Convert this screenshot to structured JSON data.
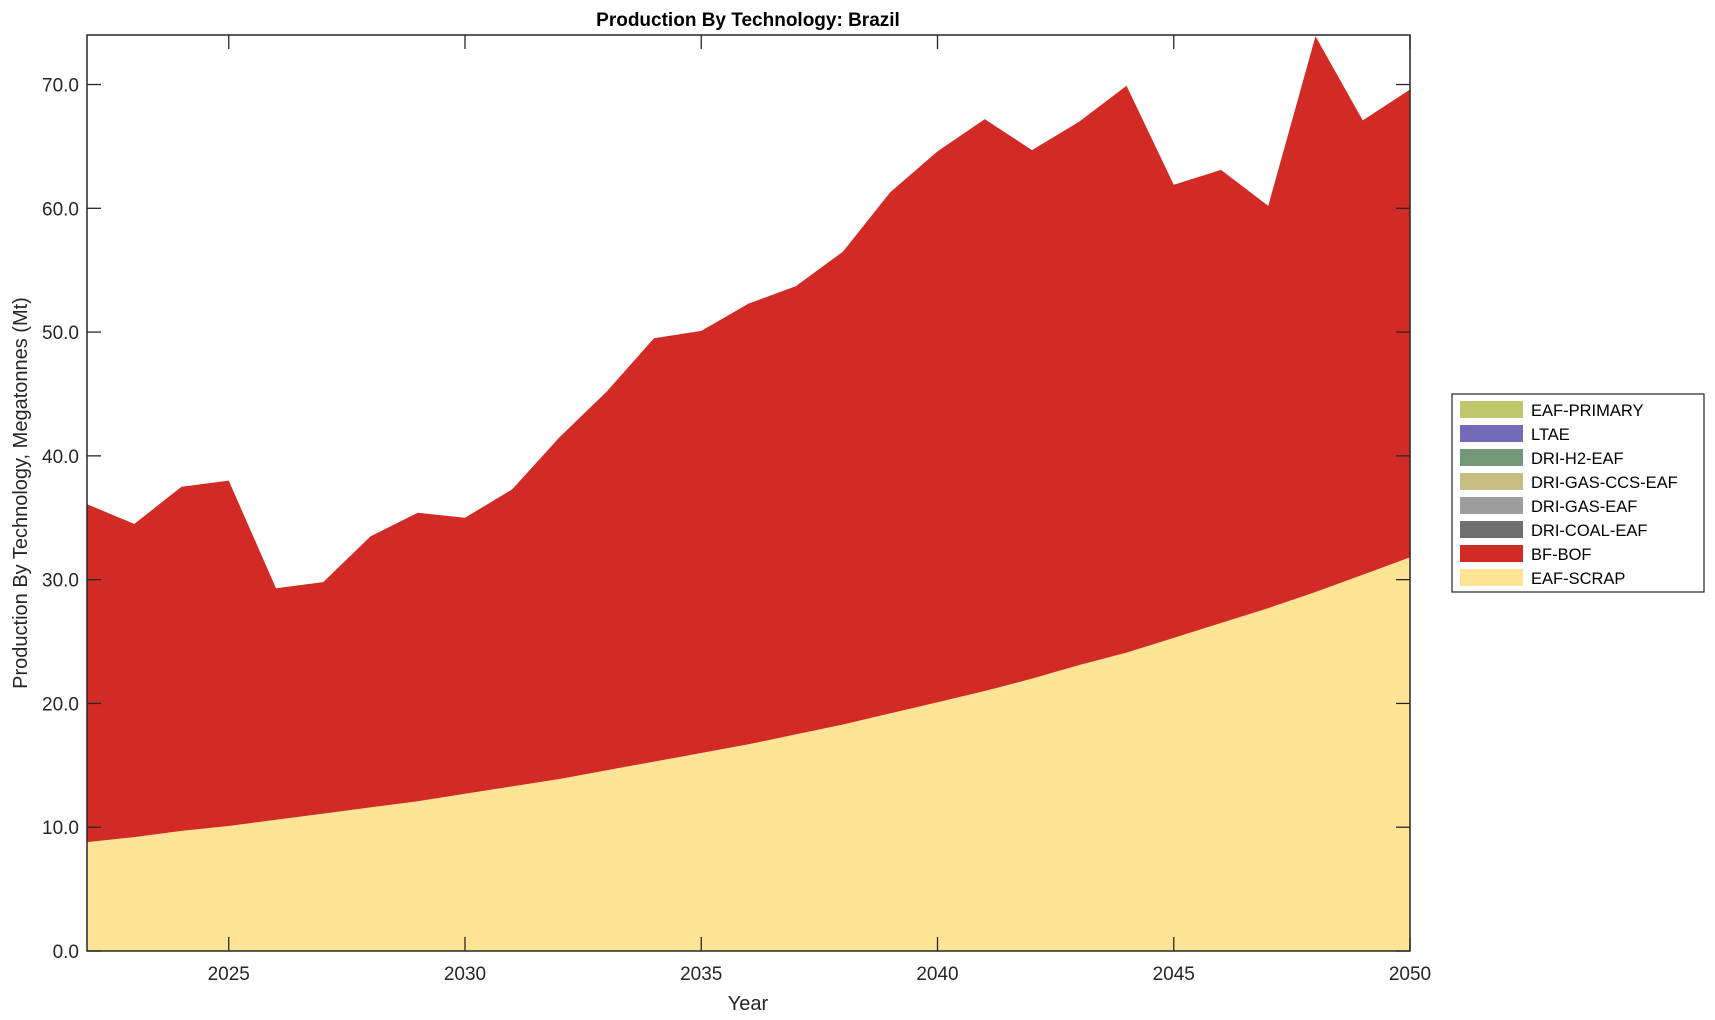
{
  "chart_data": {
    "type": "area",
    "stacked": true,
    "title": "Production By Technology: Brazil",
    "xlabel": "Year",
    "ylabel": "Production By Technology, Megatonnes (Mt)",
    "xlim": [
      2022,
      2050
    ],
    "ylim": [
      0,
      74
    ],
    "x": [
      2022,
      2023,
      2024,
      2025,
      2026,
      2027,
      2028,
      2029,
      2030,
      2031,
      2032,
      2033,
      2034,
      2035,
      2036,
      2037,
      2038,
      2039,
      2040,
      2041,
      2042,
      2043,
      2044,
      2045,
      2046,
      2047,
      2048,
      2049,
      2050
    ],
    "xticks": [
      2025,
      2030,
      2035,
      2040,
      2045,
      2050
    ],
    "xtick_labels": [
      "2025",
      "2030",
      "2035",
      "2040",
      "2045",
      "2050"
    ],
    "yticks": [
      0,
      10,
      20,
      30,
      40,
      50,
      60,
      70
    ],
    "ytick_labels": [
      "0.0",
      "10.0",
      "20.0",
      "30.0",
      "40.0",
      "50.0",
      "60.0",
      "70.0"
    ],
    "grid": false,
    "legend_position": "right",
    "stack_order_bottom_to_top": [
      "EAF-SCRAP",
      "BF-BOF",
      "DRI-COAL-EAF",
      "DRI-GAS-EAF",
      "DRI-GAS-CCS-EAF",
      "DRI-H2-EAF",
      "LTAE",
      "EAF-PRIMARY"
    ],
    "series": [
      {
        "name": "EAF-PRIMARY",
        "color": "#BFC66B",
        "values": [
          0,
          0,
          0,
          0,
          0,
          0,
          0,
          0,
          0,
          0,
          0,
          0,
          0,
          0,
          0,
          0,
          0,
          0,
          0,
          0,
          0,
          0,
          0,
          0,
          0,
          0,
          0,
          0,
          0
        ]
      },
      {
        "name": "LTAE",
        "color": "#746BB9",
        "values": [
          0,
          0,
          0,
          0,
          0,
          0,
          0,
          0,
          0,
          0,
          0,
          0,
          0,
          0,
          0,
          0,
          0,
          0,
          0,
          0,
          0,
          0,
          0,
          0,
          0,
          0,
          0,
          0,
          0
        ]
      },
      {
        "name": "DRI-H2-EAF",
        "color": "#729779",
        "values": [
          0,
          0,
          0,
          0,
          0,
          0,
          0,
          0,
          0,
          0,
          0,
          0,
          0,
          0,
          0,
          0,
          0,
          0,
          0,
          0,
          0,
          0,
          0,
          0,
          0,
          0,
          0,
          0,
          0
        ]
      },
      {
        "name": "DRI-GAS-CCS-EAF",
        "color": "#C7BD80",
        "values": [
          0,
          0,
          0,
          0,
          0,
          0,
          0,
          0,
          0,
          0,
          0,
          0,
          0,
          0,
          0,
          0,
          0,
          0,
          0,
          0,
          0,
          0,
          0,
          0,
          0,
          0,
          0,
          0,
          0
        ]
      },
      {
        "name": "DRI-GAS-EAF",
        "color": "#9D9D9D",
        "values": [
          0,
          0,
          0,
          0,
          0,
          0,
          0,
          0,
          0,
          0,
          0,
          0,
          0,
          0,
          0,
          0,
          0,
          0,
          0,
          0,
          0,
          0,
          0,
          0,
          0,
          0,
          0,
          0,
          0
        ]
      },
      {
        "name": "DRI-COAL-EAF",
        "color": "#6F6F6F",
        "values": [
          0,
          0,
          0,
          0,
          0,
          0,
          0,
          0,
          0,
          0,
          0,
          0,
          0,
          0,
          0,
          0,
          0,
          0,
          0,
          0,
          0,
          0,
          0,
          0,
          0,
          0,
          0,
          0,
          0
        ]
      },
      {
        "name": "BF-BOF",
        "color": "#D22B25",
        "values": [
          27.3,
          25.3,
          27.8,
          27.9,
          18.7,
          18.7,
          21.9,
          23.3,
          22.3,
          24.0,
          27.6,
          30.6,
          34.2,
          34.1,
          35.6,
          36.2,
          38.2,
          42.1,
          44.5,
          46.2,
          42.7,
          43.9,
          45.8,
          36.6,
          36.6,
          32.5,
          44.9,
          36.7,
          37.8
        ]
      },
      {
        "name": "EAF-SCRAP",
        "color": "#FEE494",
        "values": [
          8.8,
          9.2,
          9.7,
          10.1,
          10.6,
          11.1,
          11.6,
          12.1,
          12.7,
          13.3,
          13.9,
          14.6,
          15.3,
          16.0,
          16.7,
          17.5,
          18.3,
          19.2,
          20.1,
          21.0,
          22.0,
          23.1,
          24.1,
          25.3,
          26.5,
          27.7,
          29.0,
          30.4,
          31.8
        ]
      }
    ]
  }
}
